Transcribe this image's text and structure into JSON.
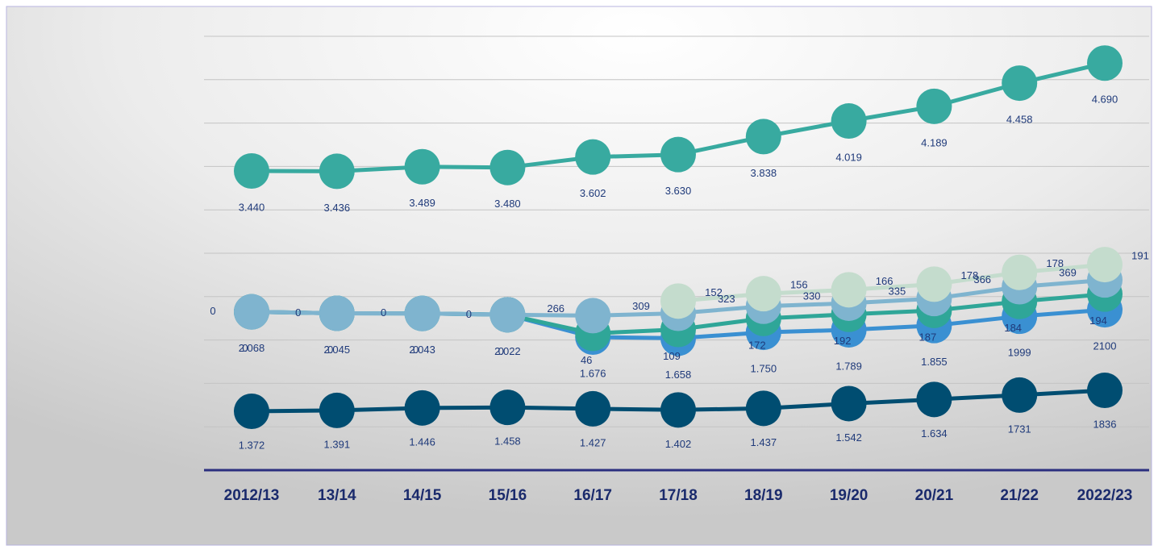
{
  "chart_data": {
    "type": "line",
    "categories": [
      "2012/13",
      "13/14",
      "14/15",
      "15/16",
      "16/17",
      "17/18",
      "18/19",
      "19/20",
      "20/21",
      "21/22",
      "2022/23"
    ],
    "series": [
      {
        "color": "#38aaa0",
        "values": [
          3440,
          3436,
          3489,
          3480,
          3602,
          3630,
          3838,
          4019,
          4189,
          4458,
          4690
        ],
        "value_labels": [
          "3.440",
          "3.436",
          "3.489",
          "3.480",
          "3.602",
          "3.630",
          "3.838",
          "4.019",
          "4.189",
          "4.458",
          "4.690"
        ]
      },
      {
        "color": "#004d71",
        "values": [
          1372,
          1391,
          1446,
          1458,
          1427,
          1402,
          1437,
          1542,
          1634,
          1731,
          1836
        ],
        "value_labels": [
          "1.372",
          "1.391",
          "1.446",
          "1.458",
          "1.427",
          "1.402",
          "1.437",
          "1.542",
          "1.634",
          "1731",
          "1836"
        ]
      },
      {
        "color": "#3a90d2",
        "values": [
          2068,
          2045,
          2043,
          2022,
          1676,
          1658,
          1750,
          1789,
          1855,
          1999,
          2100
        ],
        "value_labels": [
          "2.068",
          "2.045",
          "2.043",
          "2.022",
          "1.676",
          "1.658",
          "1.750",
          "1.789",
          "1.855",
          "1999",
          "2100"
        ]
      },
      {
        "color": "#2fa698",
        "values": [
          0,
          0,
          0,
          0,
          46,
          109,
          172,
          192,
          187,
          184,
          194
        ]
      },
      {
        "color": "#7fb4cf",
        "values": [
          0,
          0,
          0,
          0,
          266,
          309,
          323,
          330,
          335,
          366,
          369
        ]
      },
      {
        "color": "#c4dccd",
        "values": [
          null,
          null,
          null,
          null,
          null,
          152,
          156,
          166,
          178,
          178,
          191
        ]
      }
    ]
  }
}
